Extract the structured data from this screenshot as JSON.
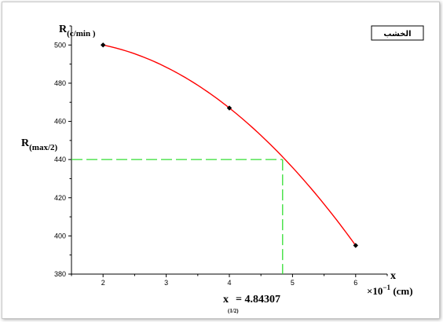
{
  "chart_data": {
    "type": "line",
    "title": "",
    "ylabel": {
      "main": "R",
      "sub": "(c/min )"
    },
    "ylabel_half": {
      "main": "R",
      "sub": "(max/2)"
    },
    "xlabel": {
      "main": "x",
      "unit_prefix": "×10",
      "unit_exp": "−1",
      "unit_suffix": " (cm)"
    },
    "xlim": [
      1.5,
      6.5
    ],
    "ylim": [
      380,
      510
    ],
    "xticks": [
      2,
      3,
      4,
      5,
      6
    ],
    "yticks": [
      380,
      400,
      420,
      440,
      460,
      480,
      500
    ],
    "points": [
      {
        "x": 2,
        "y": 500
      },
      {
        "x": 4,
        "y": 467
      },
      {
        "x": 6,
        "y": 395
      }
    ],
    "curve": {
      "color": "#ff0000"
    },
    "half_value": {
      "y": 440,
      "x": 4.84307,
      "label_main": "x",
      "label_sub": "(1/2)",
      "label_value": "= 4.84307",
      "color": "#33dd33"
    },
    "legend": {
      "text": "الخشب",
      "position": "top-right"
    }
  }
}
